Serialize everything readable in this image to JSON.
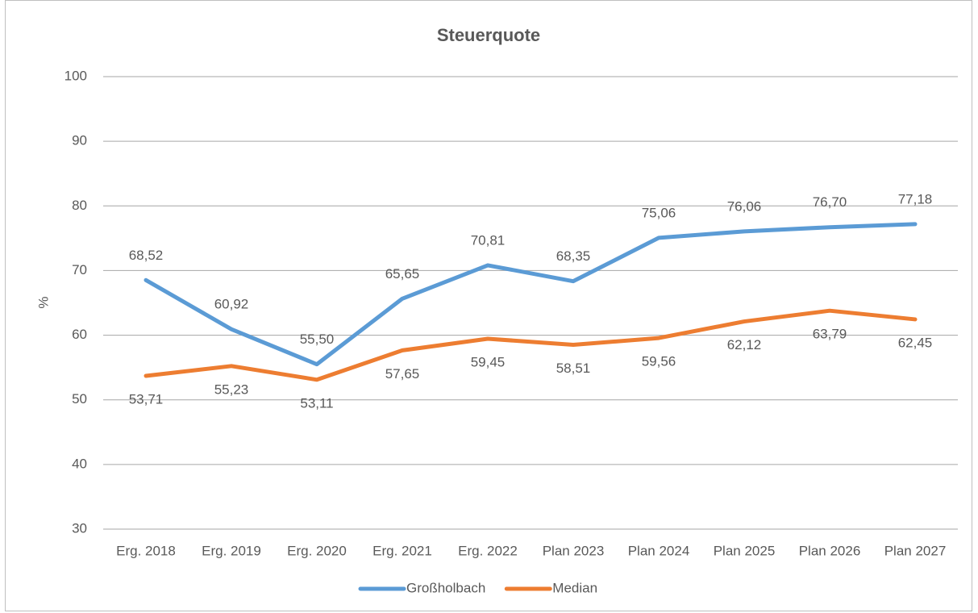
{
  "chart_data": {
    "type": "line",
    "title": "Steuerquote",
    "y_label": "%",
    "categories": [
      "Erg. 2018",
      "Erg. 2019",
      "Erg. 2020",
      "Erg. 2021",
      "Erg. 2022",
      "Plan 2023",
      "Plan 2024",
      "Plan 2025",
      "Plan 2026",
      "Plan 2027"
    ],
    "series": [
      {
        "name": "Großholbach",
        "color": "#5b9bd5",
        "values": [
          68.52,
          60.92,
          55.5,
          65.65,
          70.81,
          68.35,
          75.06,
          76.06,
          76.7,
          77.18
        ],
        "value_labels": [
          "68,52",
          "60,92",
          "55,50",
          "65,65",
          "70,81",
          "68,35",
          "75,06",
          "76,06",
          "76,70",
          "77,18"
        ]
      },
      {
        "name": "Median",
        "color": "#ed7d31",
        "values": [
          53.71,
          55.23,
          53.11,
          57.65,
          59.45,
          58.51,
          59.56,
          62.12,
          63.79,
          62.45
        ],
        "value_labels": [
          "53,71",
          "55,23",
          "53,11",
          "57,65",
          "59,45",
          "58,51",
          "59,56",
          "62,12",
          "63,79",
          "62,45"
        ]
      }
    ],
    "ylim": [
      30,
      100
    ],
    "yticks": [
      30,
      40,
      50,
      60,
      70,
      80,
      90,
      100
    ],
    "grid": true,
    "legend": "bottom"
  }
}
